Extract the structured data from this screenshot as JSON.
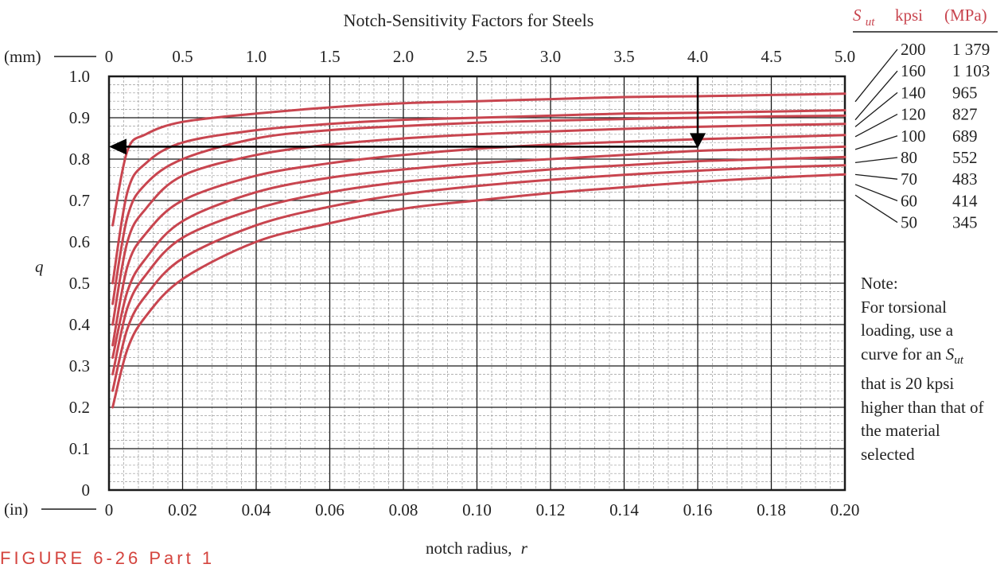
{
  "chart_data": {
    "type": "line",
    "title": "Notch-Sensitivity Factors for Steels",
    "xlabel": "notch radius,",
    "xlabel_symbol": "r",
    "ylabel": "q",
    "x_unit_label": "(in)",
    "x2_unit_label": "(mm)",
    "x_ticks": [
      "0",
      "0.02",
      "0.04",
      "0.06",
      "0.08",
      "0.10",
      "0.12",
      "0.14",
      "0.16",
      "0.18",
      "0.20"
    ],
    "x2_ticks": [
      "0",
      "0.5",
      "1.0",
      "1.5",
      "2.0",
      "2.5",
      "3.0",
      "3.5",
      "4.0",
      "4.5",
      "5.0"
    ],
    "y_ticks": [
      "0",
      "0.1",
      "0.2",
      "0.3",
      "0.4",
      "0.5",
      "0.6",
      "0.7",
      "0.8",
      "0.9",
      "1.0"
    ],
    "xlim": [
      0,
      0.2
    ],
    "ylim": [
      0,
      1.0
    ],
    "grid": true,
    "legend_header": {
      "sym": "S",
      "sub": "ut",
      "kpsi": "kpsi",
      "mpa": "(MPa)"
    },
    "series": [
      {
        "kpsi": "200",
        "mpa": "1 379",
        "x": [
          0.001,
          0.005,
          0.01,
          0.02,
          0.04,
          0.06,
          0.08,
          0.1,
          0.12,
          0.14,
          0.16,
          0.18,
          0.2
        ],
        "y": [
          0.64,
          0.82,
          0.86,
          0.89,
          0.91,
          0.925,
          0.935,
          0.94,
          0.945,
          0.95,
          0.952,
          0.955,
          0.958
        ]
      },
      {
        "kpsi": "160",
        "mpa": "1 103",
        "x": [
          0.001,
          0.005,
          0.01,
          0.02,
          0.04,
          0.06,
          0.08,
          0.1,
          0.12,
          0.14,
          0.16,
          0.18,
          0.2
        ],
        "y": [
          0.5,
          0.72,
          0.79,
          0.84,
          0.87,
          0.885,
          0.895,
          0.9,
          0.905,
          0.91,
          0.912,
          0.915,
          0.918
        ]
      },
      {
        "kpsi": "140",
        "mpa": "965",
        "x": [
          0.001,
          0.005,
          0.01,
          0.02,
          0.04,
          0.06,
          0.08,
          0.1,
          0.12,
          0.14,
          0.16,
          0.18,
          0.2
        ],
        "y": [
          0.45,
          0.66,
          0.74,
          0.8,
          0.85,
          0.87,
          0.88,
          0.888,
          0.893,
          0.897,
          0.9,
          0.903,
          0.905
        ]
      },
      {
        "kpsi": "120",
        "mpa": "827",
        "x": [
          0.001,
          0.005,
          0.01,
          0.02,
          0.04,
          0.06,
          0.08,
          0.1,
          0.12,
          0.14,
          0.16,
          0.18,
          0.2
        ],
        "y": [
          0.4,
          0.6,
          0.68,
          0.76,
          0.81,
          0.835,
          0.85,
          0.86,
          0.867,
          0.873,
          0.878,
          0.882,
          0.885
        ]
      },
      {
        "kpsi": "100",
        "mpa": "689",
        "x": [
          0.001,
          0.005,
          0.01,
          0.02,
          0.04,
          0.06,
          0.08,
          0.1,
          0.12,
          0.14,
          0.16,
          0.18,
          0.2
        ],
        "y": [
          0.35,
          0.54,
          0.62,
          0.7,
          0.76,
          0.79,
          0.81,
          0.825,
          0.835,
          0.842,
          0.848,
          0.853,
          0.858
        ]
      },
      {
        "kpsi": "80",
        "mpa": "552",
        "x": [
          0.001,
          0.005,
          0.01,
          0.02,
          0.04,
          0.06,
          0.08,
          0.1,
          0.12,
          0.14,
          0.16,
          0.18,
          0.2
        ],
        "y": [
          0.32,
          0.48,
          0.56,
          0.65,
          0.72,
          0.755,
          0.775,
          0.79,
          0.8,
          0.81,
          0.82,
          0.825,
          0.83
        ]
      },
      {
        "kpsi": "70",
        "mpa": "483",
        "x": [
          0.001,
          0.005,
          0.01,
          0.02,
          0.04,
          0.06,
          0.08,
          0.1,
          0.12,
          0.14,
          0.16,
          0.18,
          0.2
        ],
        "y": [
          0.28,
          0.44,
          0.52,
          0.61,
          0.68,
          0.72,
          0.745,
          0.76,
          0.775,
          0.785,
          0.795,
          0.8,
          0.805
        ]
      },
      {
        "kpsi": "60",
        "mpa": "414",
        "x": [
          0.001,
          0.005,
          0.01,
          0.02,
          0.04,
          0.06,
          0.08,
          0.1,
          0.12,
          0.14,
          0.16,
          0.18,
          0.2
        ],
        "y": [
          0.24,
          0.39,
          0.47,
          0.56,
          0.64,
          0.685,
          0.715,
          0.735,
          0.75,
          0.762,
          0.772,
          0.78,
          0.785
        ]
      },
      {
        "kpsi": "50",
        "mpa": "345",
        "x": [
          0.001,
          0.005,
          0.01,
          0.02,
          0.04,
          0.06,
          0.08,
          0.1,
          0.12,
          0.14,
          0.16,
          0.18,
          0.2
        ],
        "y": [
          0.2,
          0.34,
          0.42,
          0.51,
          0.6,
          0.645,
          0.68,
          0.7,
          0.718,
          0.732,
          0.745,
          0.755,
          0.763
        ]
      }
    ],
    "annotations": [
      {
        "type": "arrow-down",
        "x": 0.16,
        "from_y": 1.0,
        "to_y": 0.83
      },
      {
        "type": "arrow-left",
        "y": 0.83,
        "from_x": 0.16,
        "to_x": 0.0
      }
    ],
    "colors": {
      "curve": "#c8454f",
      "axis": "#1a1a1a",
      "minor_grid": "#9a9a9a",
      "header": "#c8454f"
    }
  },
  "note": {
    "lines": [
      "Note:",
      "For torsional",
      "loading, use a",
      "curve for an",
      "that is 20 kpsi",
      "higher than that of",
      "the material",
      "selected"
    ],
    "symbol": "S",
    "symbol_sub": "ut"
  },
  "caption": "FIGURE 6-26 Part 1"
}
